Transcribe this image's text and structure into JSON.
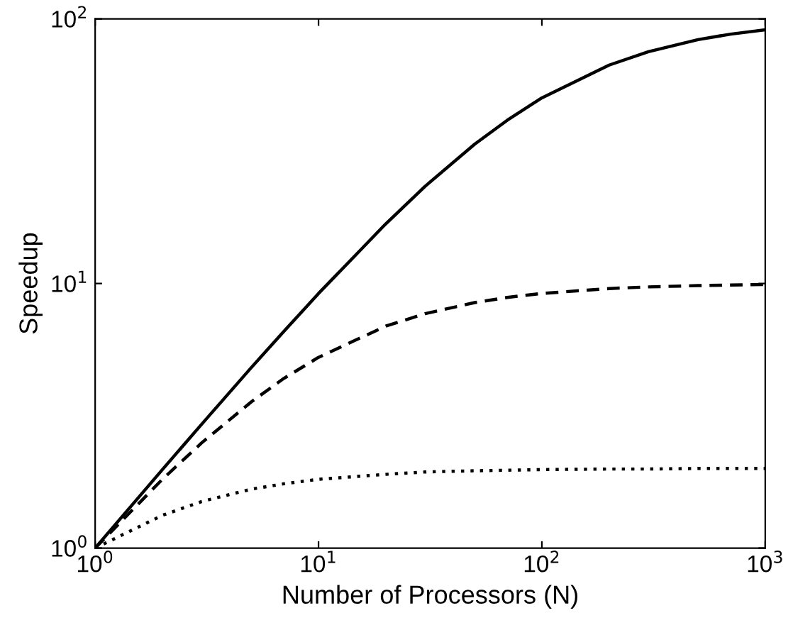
{
  "chart_data": {
    "type": "line",
    "xlabel": "Number of Processors (N)",
    "ylabel": "Speedup",
    "log": "xy",
    "xlim": [
      1,
      1000
    ],
    "ylim": [
      1,
      100
    ],
    "xticks": [
      {
        "value": 1,
        "label": "10$^{0}$"
      },
      {
        "value": 10,
        "label": "10$^{1}$"
      },
      {
        "value": 100,
        "label": "10$^{2}$"
      },
      {
        "value": 1000,
        "label": "10$^{3}$"
      }
    ],
    "yticks": [
      {
        "value": 1,
        "label": "10$^{0}$"
      },
      {
        "value": 10,
        "label": "10$^{1}$"
      },
      {
        "value": 100,
        "label": "10$^{2}$"
      }
    ],
    "x": [
      1,
      2,
      3,
      5,
      7,
      10,
      20,
      30,
      50,
      70,
      100,
      200,
      300,
      500,
      700,
      1000
    ],
    "series": [
      {
        "color": "#000000",
        "line_style": "solid",
        "values": [
          1,
          1.98,
          2.94,
          4.81,
          6.6,
          9.17,
          16.8,
          23.3,
          33.6,
          41.4,
          50.3,
          66.9,
          75.2,
          83.5,
          87.6,
          91.0
        ]
      },
      {
        "color": "#000000",
        "line_style": "dashed",
        "values": [
          1,
          1.82,
          2.5,
          3.57,
          4.38,
          5.26,
          6.9,
          7.69,
          8.47,
          8.86,
          9.17,
          9.57,
          9.71,
          9.82,
          9.87,
          9.91
        ]
      },
      {
        "color": "#000000",
        "line_style": "dotted",
        "values": [
          1,
          1.33,
          1.5,
          1.67,
          1.75,
          1.82,
          1.9,
          1.94,
          1.96,
          1.97,
          1.98,
          1.99,
          1.99,
          2.0,
          2.0,
          2.0
        ]
      }
    ],
    "grid": false
  }
}
